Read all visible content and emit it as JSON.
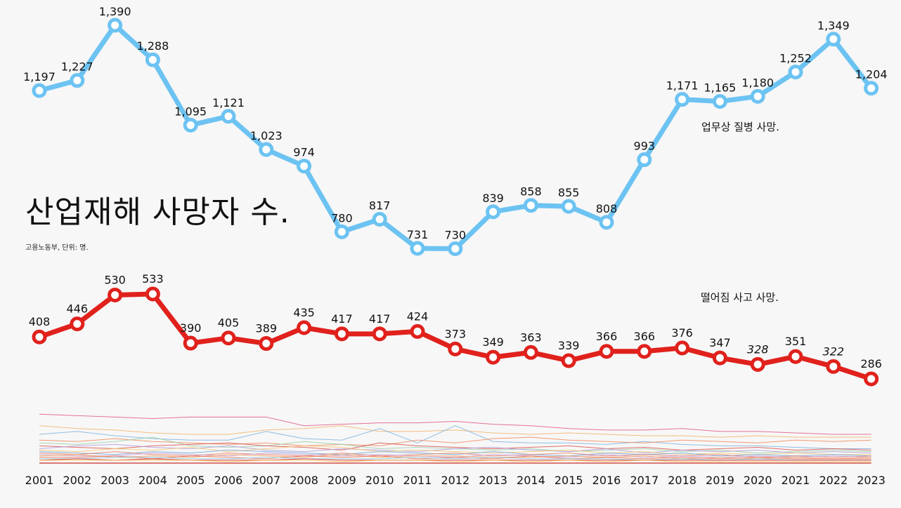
{
  "header": {
    "title": "산업재해 사망자 수.",
    "source": "고용노동부, 단위: 명."
  },
  "chart_data": {
    "type": "line",
    "title": "산업재해 사망자 수.",
    "subtitle": "고용노동부, 단위: 명.",
    "x": [
      2001,
      2002,
      2003,
      2004,
      2005,
      2006,
      2007,
      2008,
      2009,
      2010,
      2011,
      2012,
      2013,
      2014,
      2015,
      2016,
      2017,
      2018,
      2019,
      2020,
      2021,
      2022,
      2023
    ],
    "series": [
      {
        "name": "업무상 질병 사망.",
        "color": "#6cc3f2",
        "values": [
          1197,
          1227,
          1390,
          1288,
          1095,
          1121,
          1023,
          974,
          780,
          817,
          731,
          730,
          839,
          858,
          855,
          808,
          993,
          1171,
          1165,
          1180,
          1252,
          1349,
          1204
        ],
        "labels": [
          "1,197",
          "1,227",
          "1,390",
          "1,288",
          "1,095",
          "1,121",
          "1,023",
          "974",
          "780",
          "817",
          "731",
          "730",
          "839",
          "858",
          "855",
          "808",
          "993",
          "1,171",
          "1,165",
          "1,180",
          "1,252",
          "1,349",
          "1,204"
        ]
      },
      {
        "name": "떨어짐 사고 사망.",
        "color": "#e0211c",
        "values": [
          408,
          446,
          530,
          533,
          390,
          405,
          389,
          435,
          417,
          417,
          424,
          373,
          349,
          363,
          339,
          366,
          366,
          376,
          347,
          328,
          351,
          322,
          286
        ],
        "labels": [
          "408",
          "446",
          "530",
          "533",
          "390",
          "405",
          "389",
          "435",
          "417",
          "417",
          "424",
          "373",
          "349",
          "363",
          "339",
          "366",
          "366",
          "376",
          "347",
          "328",
          "351",
          "322",
          "286"
        ],
        "italic_labels": [
          2020,
          2022
        ]
      }
    ],
    "background_lines": {
      "colors": [
        "#e05a8a",
        "#f2b36b",
        "#7fb4e0",
        "#f08a5d",
        "#9ad0a8",
        "#d9534f",
        "#b39ddb",
        "#f7c873",
        "#6fa8dc",
        "#e8806b",
        "#c9a0dc",
        "#f4a261",
        "#e76f51",
        "#8ecae6",
        "#d62828",
        "#fcbf49"
      ],
      "values": [
        [
          34,
          33,
          32,
          31,
          32,
          32,
          32,
          26,
          27,
          28,
          28,
          29,
          27,
          26,
          24,
          23,
          23,
          24,
          22,
          22,
          21,
          20,
          20
        ],
        [
          26,
          24,
          23,
          21,
          20,
          20,
          23,
          24,
          26,
          22,
          22,
          23,
          21,
          20,
          21,
          20,
          19,
          19,
          18,
          19,
          18,
          18,
          18
        ],
        [
          20,
          22,
          19,
          17,
          16,
          16,
          22,
          17,
          16,
          24,
          14,
          26,
          15,
          14,
          14,
          13,
          15,
          13,
          12,
          12,
          11,
          10,
          10
        ],
        [
          16,
          15,
          17,
          15,
          14,
          13,
          14,
          12,
          13,
          12,
          16,
          14,
          17,
          18,
          16,
          15,
          14,
          16,
          15,
          14,
          16,
          15,
          16
        ],
        [
          14,
          13,
          15,
          18,
          12,
          11,
          12,
          15,
          13,
          10,
          11,
          10,
          9,
          10,
          8,
          9,
          10,
          8,
          9,
          7,
          8,
          9,
          8
        ],
        [
          12,
          11,
          10,
          12,
          13,
          14,
          12,
          11,
          9,
          14,
          12,
          11,
          10,
          11,
          12,
          10,
          11,
          9,
          10,
          11,
          9,
          10,
          9
        ],
        [
          10,
          12,
          13,
          11,
          10,
          12,
          9,
          8,
          10,
          9,
          8,
          10,
          11,
          9,
          8,
          10,
          7,
          9,
          8,
          9,
          7,
          8,
          7
        ],
        [
          9,
          8,
          10,
          9,
          11,
          8,
          10,
          12,
          11,
          8,
          9,
          8,
          7,
          8,
          9,
          7,
          8,
          6,
          7,
          6,
          7,
          6,
          6
        ],
        [
          8,
          7,
          6,
          8,
          7,
          9,
          8,
          7,
          6,
          8,
          7,
          6,
          8,
          6,
          5,
          7,
          6,
          7,
          5,
          6,
          5,
          6,
          5
        ],
        [
          7,
          6,
          8,
          6,
          5,
          7,
          6,
          5,
          7,
          5,
          6,
          7,
          5,
          6,
          7,
          5,
          6,
          5,
          6,
          4,
          5,
          4,
          5
        ],
        [
          6,
          5,
          5,
          7,
          6,
          5,
          7,
          6,
          5,
          6,
          5,
          4,
          6,
          5,
          4,
          6,
          4,
          5,
          4,
          5,
          4,
          5,
          4
        ],
        [
          5,
          6,
          4,
          5,
          4,
          6,
          5,
          4,
          6,
          4,
          5,
          5,
          4,
          4,
          5,
          4,
          5,
          3,
          4,
          3,
          4,
          3,
          4
        ],
        [
          4,
          4,
          5,
          3,
          5,
          4,
          3,
          5,
          4,
          5,
          3,
          4,
          3,
          5,
          3,
          4,
          3,
          4,
          3,
          4,
          3,
          3,
          3
        ],
        [
          3,
          3,
          4,
          4,
          3,
          3,
          4,
          3,
          3,
          3,
          4,
          3,
          4,
          3,
          3,
          3,
          2,
          3,
          2,
          3,
          2,
          2,
          2
        ],
        [
          2,
          3,
          2,
          3,
          2,
          2,
          2,
          3,
          2,
          2,
          2,
          2,
          2,
          2,
          2,
          2,
          2,
          2,
          2,
          2,
          2,
          2,
          2
        ],
        [
          2,
          2,
          2,
          2,
          2,
          1,
          2,
          2,
          1,
          2,
          2,
          1,
          2,
          1,
          2,
          1,
          2,
          1,
          1,
          1,
          1,
          1,
          1
        ]
      ]
    },
    "grid": false,
    "legend": "inline"
  }
}
